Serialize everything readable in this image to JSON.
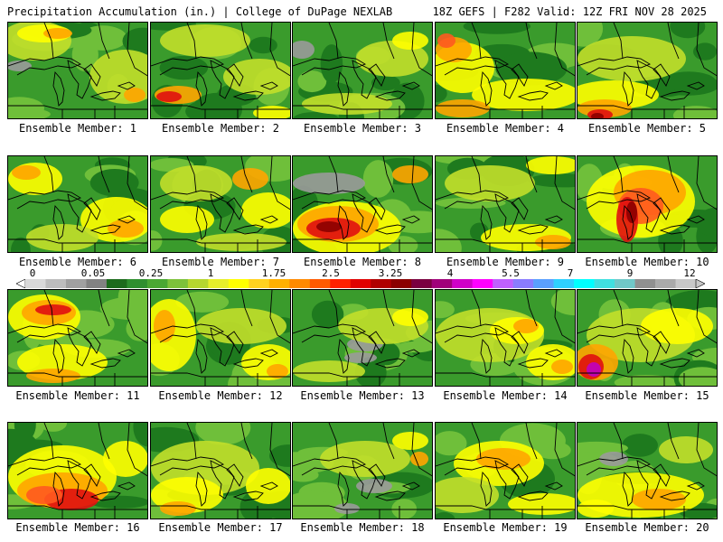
{
  "header": {
    "title_left": "Precipitation Accumulation (in.) | College of DuPage NEXLAB",
    "title_right": "18Z GEFS | F282 Valid: 12Z FRI NOV 28 2025"
  },
  "panels": [
    {
      "label": "Ensemble Member: 1"
    },
    {
      "label": "Ensemble Member: 2"
    },
    {
      "label": "Ensemble Member: 3"
    },
    {
      "label": "Ensemble Member: 4"
    },
    {
      "label": "Ensemble Member: 5"
    },
    {
      "label": "Ensemble Member: 6"
    },
    {
      "label": "Ensemble Member: 7"
    },
    {
      "label": "Ensemble Member: 8"
    },
    {
      "label": "Ensemble Member: 9"
    },
    {
      "label": "Ensemble Member: 10"
    },
    {
      "label": "Ensemble Member: 11"
    },
    {
      "label": "Ensemble Member: 12"
    },
    {
      "label": "Ensemble Member: 13"
    },
    {
      "label": "Ensemble Member: 14"
    },
    {
      "label": "Ensemble Member: 15"
    },
    {
      "label": "Ensemble Member: 16"
    },
    {
      "label": "Ensemble Member: 17"
    },
    {
      "label": "Ensemble Member: 18"
    },
    {
      "label": "Ensemble Member: 19"
    },
    {
      "label": "Ensemble Member: 20"
    }
  ],
  "legend": {
    "tick_labels": [
      "0",
      "0.05",
      "0.25",
      "1",
      "1.75",
      "2.5",
      "3.25",
      "4",
      "5.5",
      "7",
      "9",
      "12"
    ],
    "colors": [
      "#d9d9d9",
      "#bdbdbd",
      "#a0a0a0",
      "#828282",
      "#1d6b1d",
      "#2f8f2f",
      "#4aa832",
      "#7dc23a",
      "#b5d62f",
      "#e6ee2a",
      "#ffff00",
      "#ffd21f",
      "#ffb000",
      "#ff8a00",
      "#ff5a00",
      "#ff2000",
      "#e00000",
      "#b00000",
      "#8b0000",
      "#7a0040",
      "#a0007a",
      "#d000c8",
      "#ff00ff",
      "#c060ff",
      "#8a7cff",
      "#5aa0ff",
      "#2fd0ff",
      "#00ffff",
      "#40e0e0",
      "#70c8c8",
      "#909090",
      "#aaaaaa",
      "#c8c8c8"
    ]
  },
  "map_colors": {
    "dark_green": "#1e7a1e",
    "mid_green": "#3a9b2c",
    "light_green": "#6fbf3a",
    "yellow_green": "#c2df2a",
    "yellow": "#ffff00",
    "orange": "#ffa500",
    "red_orange": "#ff5a1f",
    "red": "#e01010",
    "dark_red": "#8b0000",
    "magenta": "#c000c0",
    "gray": "#9a9a9a",
    "outline": "#000000"
  }
}
